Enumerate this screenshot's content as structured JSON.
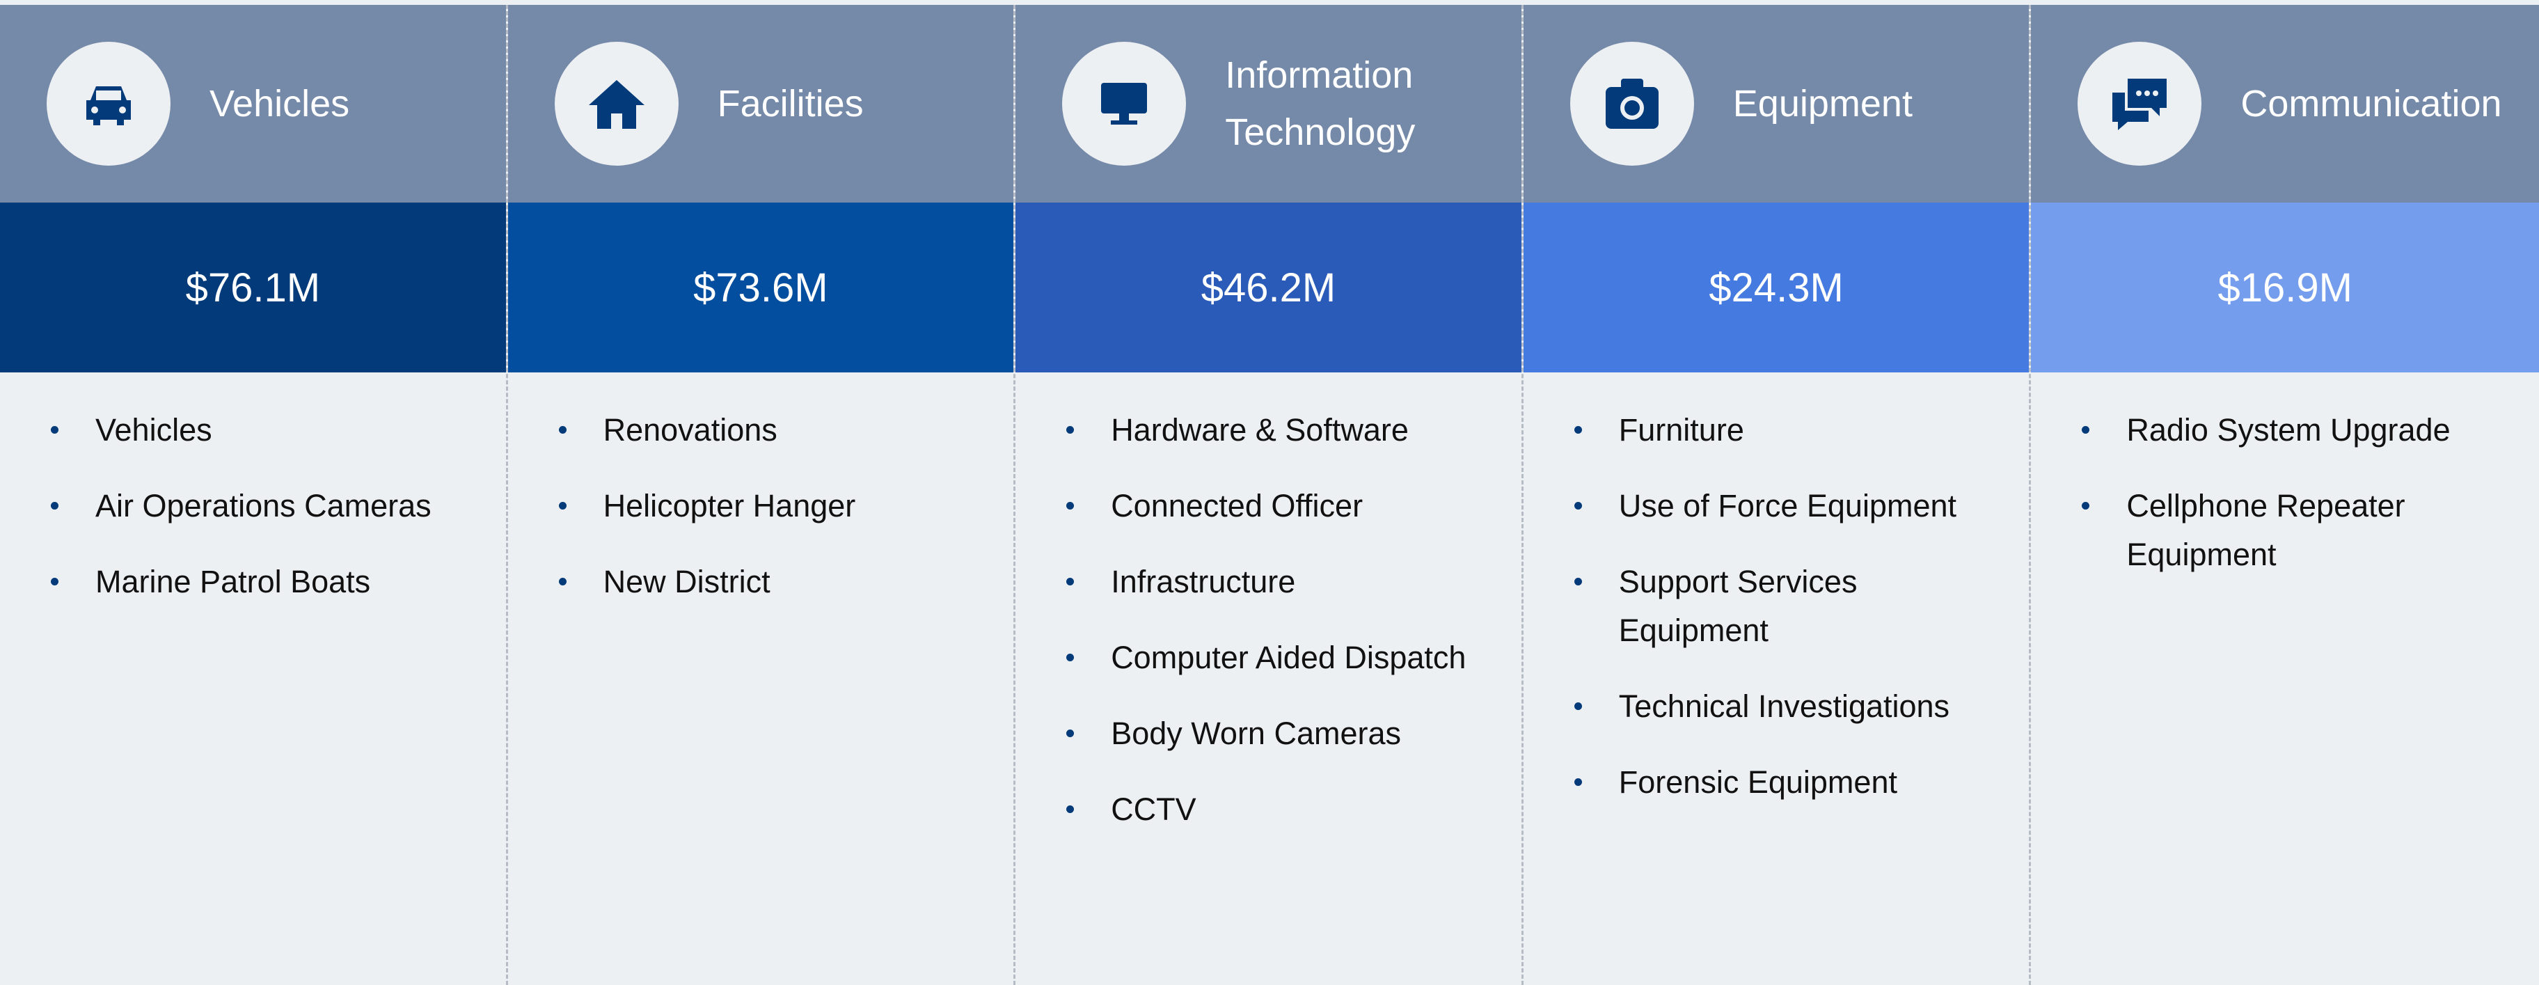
{
  "columns": [
    {
      "title": "Vehicles",
      "amount": "$76.1M",
      "items": [
        "Vehicles",
        "Air Operations Cameras",
        "Marine Patrol Boats"
      ]
    },
    {
      "title": "Facilities",
      "amount": "$73.6M",
      "items": [
        "Renovations",
        "Helicopter Hanger",
        "New District"
      ]
    },
    {
      "title": "Information Technology",
      "amount": "$46.2M",
      "items": [
        "Hardware & Software",
        "Connected Officer",
        "Infrastructure",
        "Computer Aided Dispatch",
        "Body Worn Cameras",
        "CCTV"
      ]
    },
    {
      "title": "Equipment",
      "amount": "$24.3M",
      "items": [
        "Furniture",
        "Use of Force Equipment",
        "Support Services Equipment",
        "Technical Investigations",
        "Forensic Equipment"
      ]
    },
    {
      "title": "Communication",
      "amount": "$16.9M",
      "items": [
        "Radio System Upgrade",
        "Cellphone Repeater Equipment"
      ]
    }
  ]
}
